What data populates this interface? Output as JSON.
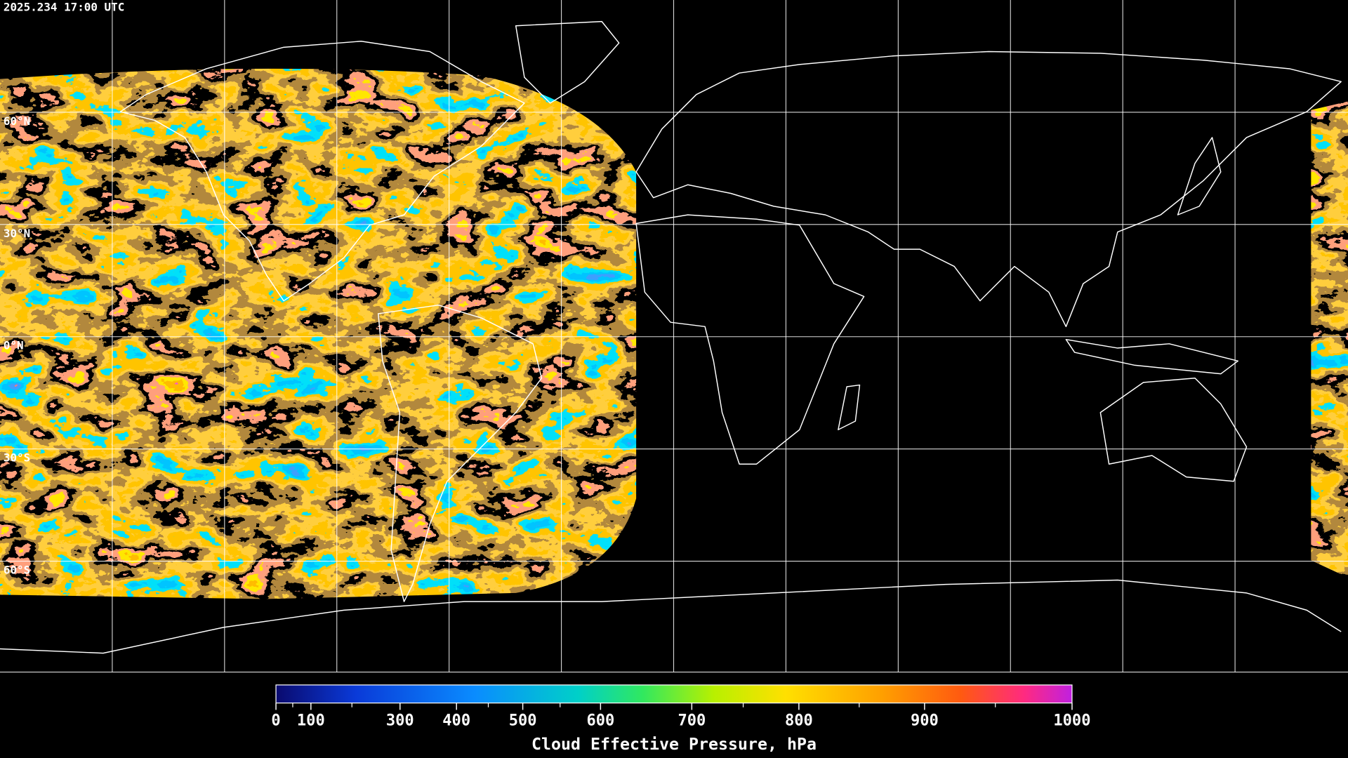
{
  "timestamp": "2025.234 17:00 UTC",
  "latitude_labels": [
    "60°N",
    "30°N",
    "0°N",
    "30°S",
    "60°S"
  ],
  "colorbar": {
    "label": "Cloud Effective Pressure, hPa",
    "range": [
      0,
      1000
    ],
    "ticks": [
      0,
      100,
      300,
      400,
      500,
      600,
      700,
      800,
      900,
      1000
    ],
    "minor_ticks": [
      50,
      200,
      450,
      550,
      750,
      850,
      950
    ]
  }
}
